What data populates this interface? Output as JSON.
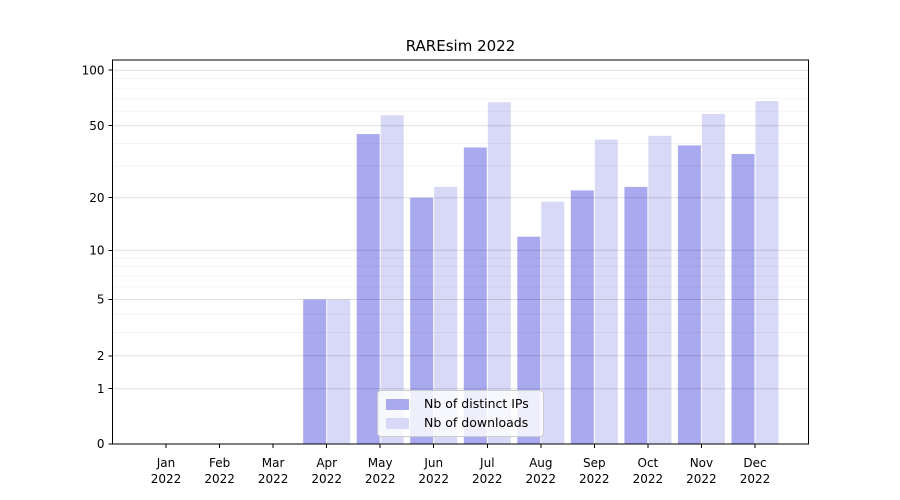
{
  "chart_data": {
    "type": "bar",
    "title": "RAREsim 2022",
    "categories": [
      "Jan",
      "Feb",
      "Mar",
      "Apr",
      "May",
      "Jun",
      "Jul",
      "Aug",
      "Sep",
      "Oct",
      "Nov",
      "Dec"
    ],
    "category_year": "2022",
    "series": [
      {
        "name": "Nb of distinct IPs",
        "color": "#a9a9f0",
        "values": [
          0,
          0,
          0,
          5,
          45,
          20,
          38,
          12,
          22,
          23,
          39,
          35
        ]
      },
      {
        "name": "Nb of downloads",
        "color": "#d8d8f7",
        "values": [
          0,
          0,
          0,
          5,
          57,
          23,
          67,
          19,
          42,
          44,
          58,
          68
        ]
      }
    ],
    "yticks": [
      0,
      1,
      2,
      5,
      10,
      20,
      50,
      100
    ],
    "minor_yticks": [
      3,
      4,
      6,
      7,
      8,
      9,
      30,
      40,
      60,
      70,
      80,
      90
    ],
    "ylim": [
      0,
      100
    ],
    "scale": "log(value+1)",
    "grid": true,
    "legend_position": "lower center",
    "colors": {
      "axis": "#000000",
      "major_grid": "rgba(0,0,0,0.13)",
      "minor_grid": "rgba(0,0,0,0.055)",
      "background": "#ffffff"
    }
  }
}
